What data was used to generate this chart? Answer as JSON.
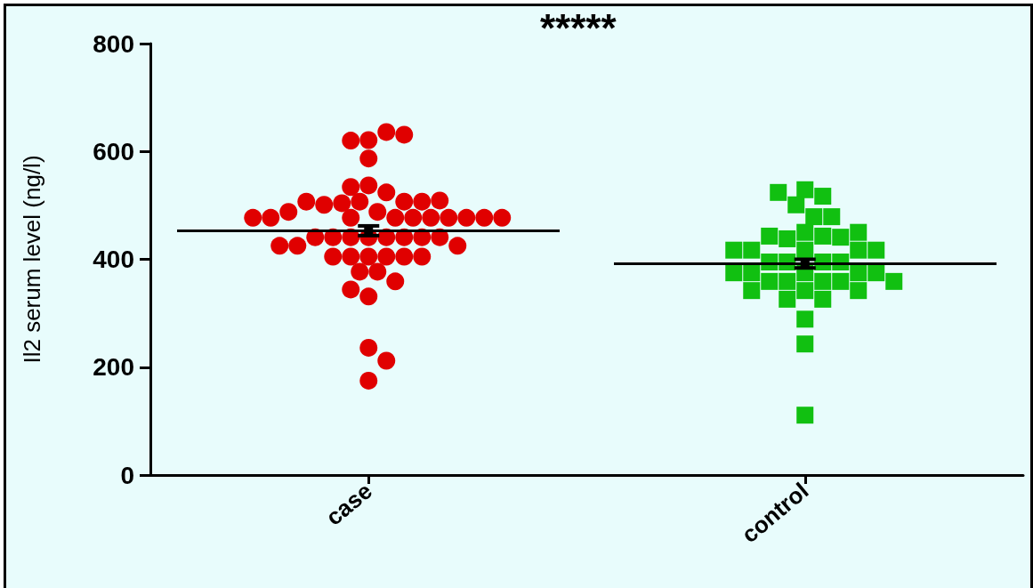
{
  "chart_data": {
    "type": "scatter",
    "ylabel": "Il2 serum level (ng/l)",
    "annotations": [
      "*****"
    ],
    "categories": [
      "case",
      "control"
    ],
    "ylim": [
      0,
      800
    ],
    "yticks": [
      0,
      200,
      400,
      600,
      800
    ],
    "grid": false,
    "series": [
      {
        "marker": "circle",
        "color": "#e00000",
        "x": [
          "case",
          "case",
          "case",
          "case",
          "case",
          "case",
          "case",
          "case",
          "case",
          "case",
          "case",
          "case",
          "case",
          "case",
          "case",
          "case",
          "case",
          "case",
          "case",
          "case",
          "case",
          "case",
          "case",
          "case",
          "case",
          "case",
          "case",
          "case",
          "case",
          "case",
          "case",
          "case",
          "case",
          "case",
          "case",
          "case",
          "case",
          "case",
          "case",
          "case",
          "case",
          "case",
          "case",
          "case",
          "case",
          "case",
          "case",
          "case",
          "case",
          "case",
          "case",
          "case"
        ],
        "values": [
          621,
          636,
          620,
          631,
          587,
          537,
          524,
          534,
          507,
          504,
          507,
          501,
          507,
          507,
          509,
          488,
          488,
          477,
          477,
          477,
          477,
          477,
          477,
          477,
          477,
          477,
          477,
          441,
          441,
          441,
          441,
          441,
          441,
          441,
          441,
          425,
          425,
          425,
          405,
          405,
          405,
          405,
          405,
          405,
          377,
          377,
          359,
          331,
          344,
          236,
          212,
          175
        ]
      },
      {
        "marker": "square",
        "color": "#11c011",
        "x": [
          "control",
          "control",
          "control",
          "control",
          "control",
          "control",
          "control",
          "control",
          "control",
          "control",
          "control",
          "control",
          "control",
          "control",
          "control",
          "control",
          "control",
          "control",
          "control",
          "control",
          "control",
          "control",
          "control",
          "control",
          "control",
          "control",
          "control",
          "control",
          "control",
          "control",
          "control",
          "control",
          "control",
          "control",
          "control",
          "control",
          "control",
          "control",
          "control"
        ],
        "values": [
          529,
          517,
          501,
          524,
          479,
          479,
          450,
          443,
          438,
          441,
          443,
          450,
          417,
          417,
          417,
          417,
          417,
          395,
          395,
          395,
          395,
          375,
          375,
          375,
          375,
          375,
          359,
          359,
          359,
          359,
          359,
          342,
          342,
          342,
          326,
          326,
          289,
          243,
          111
        ]
      },
      {
        "color": "#000000",
        "x": [
          "case",
          "control"
        ],
        "values": [
          453,
          392
        ],
        "errors": [
          9,
          8
        ]
      }
    ]
  }
}
